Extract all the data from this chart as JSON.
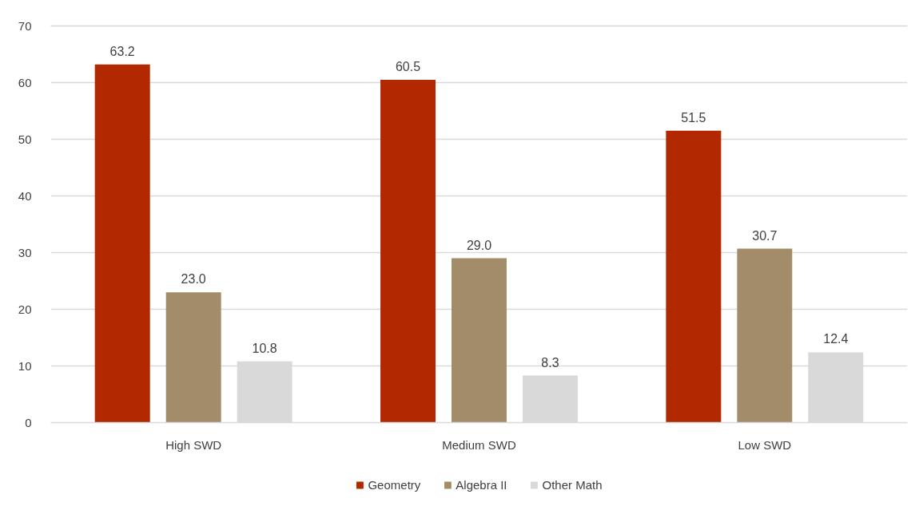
{
  "chart_data": {
    "type": "bar",
    "categories": [
      "High SWD",
      "Medium SWD",
      "Low SWD"
    ],
    "series": [
      {
        "name": "Geometry",
        "color": "#b22800",
        "values": [
          63.2,
          60.5,
          51.5
        ],
        "value_labels": [
          "63.2",
          "60.5",
          "51.5"
        ]
      },
      {
        "name": "Algebra II",
        "color": "#a38c6a",
        "values": [
          23.0,
          29.0,
          30.7
        ],
        "value_labels": [
          "23.0",
          "29.0",
          "30.7"
        ]
      },
      {
        "name": "Other Math",
        "color": "#d9d9d9",
        "values": [
          10.8,
          8.3,
          12.4
        ],
        "value_labels": [
          "10.8",
          "8.3",
          "12.4"
        ]
      }
    ],
    "ylim": [
      0,
      70
    ],
    "yticks": [
      0,
      10,
      20,
      30,
      40,
      50,
      60,
      70
    ],
    "grid": "y",
    "legend": "bottom"
  }
}
